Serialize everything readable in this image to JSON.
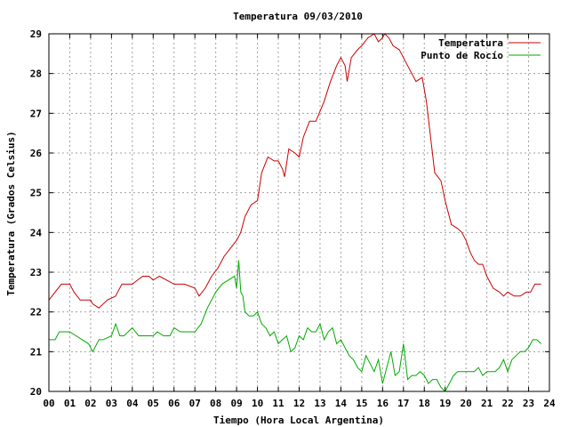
{
  "chart_data": {
    "type": "line",
    "title": "Temperatura 09/03/2010",
    "xlabel": "Tiempo (Hora Local Argentina)",
    "ylabel": "Temperatura (Grados Celsius)",
    "xlim": [
      0,
      24
    ],
    "ylim": [
      20,
      29
    ],
    "x_tick_labels": [
      "00",
      "01",
      "02",
      "03",
      "04",
      "05",
      "06",
      "07",
      "08",
      "09",
      "10",
      "11",
      "12",
      "13",
      "14",
      "15",
      "16",
      "17",
      "18",
      "19",
      "20",
      "21",
      "22",
      "23",
      "24"
    ],
    "y_tick_labels": [
      "20",
      "21",
      "22",
      "23",
      "24",
      "25",
      "26",
      "27",
      "28",
      "29"
    ],
    "grid": true,
    "legend_position": "top-right",
    "series": [
      {
        "name": "Temperatura",
        "color": "#cc0000",
        "x": [
          0,
          0.3,
          0.6,
          1.0,
          1.2,
          1.5,
          2.0,
          2.1,
          2.4,
          2.8,
          3.2,
          3.5,
          4.0,
          4.5,
          4.8,
          5.0,
          5.3,
          6.0,
          6.5,
          7.0,
          7.2,
          7.5,
          7.8,
          8.1,
          8.4,
          8.7,
          9.0,
          9.2,
          9.4,
          9.7,
          10.0,
          10.2,
          10.5,
          10.8,
          11.0,
          11.2,
          11.3,
          11.5,
          11.8,
          12.0,
          12.2,
          12.5,
          12.8,
          13.2,
          13.5,
          13.8,
          14.0,
          14.2,
          14.3,
          14.5,
          14.8,
          15.0,
          15.3,
          15.6,
          15.8,
          16.0,
          16.1,
          16.3,
          16.5,
          16.8,
          17.0,
          17.3,
          17.6,
          17.9,
          18.1,
          18.3,
          18.5,
          18.8,
          19.0,
          19.3,
          19.6,
          19.8,
          20.0,
          20.2,
          20.4,
          20.6,
          20.8,
          21.0,
          21.3,
          21.6,
          21.8,
          22.0,
          22.3,
          22.6,
          22.9,
          23.1,
          23.3,
          23.6
        ],
        "y": [
          22.3,
          22.5,
          22.7,
          22.7,
          22.5,
          22.3,
          22.3,
          22.2,
          22.1,
          22.3,
          22.4,
          22.7,
          22.7,
          22.9,
          22.9,
          22.8,
          22.9,
          22.7,
          22.7,
          22.6,
          22.4,
          22.6,
          22.9,
          23.1,
          23.4,
          23.6,
          23.8,
          24.0,
          24.4,
          24.7,
          24.8,
          25.5,
          25.9,
          25.8,
          25.8,
          25.6,
          25.4,
          26.1,
          26.0,
          25.9,
          26.4,
          26.8,
          26.8,
          27.3,
          27.8,
          28.2,
          28.4,
          28.2,
          27.8,
          28.4,
          28.6,
          28.7,
          28.9,
          29.0,
          28.8,
          28.9,
          29.0,
          28.9,
          28.7,
          28.6,
          28.4,
          28.1,
          27.8,
          27.9,
          27.3,
          26.4,
          25.5,
          25.3,
          24.8,
          24.2,
          24.1,
          24.0,
          23.8,
          23.5,
          23.3,
          23.2,
          23.2,
          22.9,
          22.6,
          22.5,
          22.4,
          22.5,
          22.4,
          22.4,
          22.5,
          22.5,
          22.7,
          22.7
        ]
      },
      {
        "name": "Punto de Rocío",
        "color": "#00aa00",
        "x": [
          0,
          0.3,
          0.5,
          0.8,
          1.0,
          1.3,
          1.6,
          1.9,
          2.1,
          2.4,
          2.6,
          3.0,
          3.2,
          3.4,
          3.6,
          4.0,
          4.3,
          4.6,
          5.0,
          5.2,
          5.5,
          5.8,
          6.0,
          6.3,
          6.6,
          7.0,
          7.3,
          7.6,
          7.8,
          8.0,
          8.3,
          8.6,
          8.9,
          9.0,
          9.1,
          9.2,
          9.3,
          9.4,
          9.6,
          9.8,
          10.0,
          10.2,
          10.4,
          10.6,
          10.8,
          11.0,
          11.2,
          11.4,
          11.6,
          11.8,
          12.0,
          12.2,
          12.4,
          12.6,
          12.8,
          13.0,
          13.2,
          13.4,
          13.6,
          13.8,
          14.0,
          14.2,
          14.4,
          14.6,
          14.8,
          15.0,
          15.2,
          15.4,
          15.6,
          15.8,
          16.0,
          16.2,
          16.4,
          16.6,
          16.8,
          17.0,
          17.2,
          17.4,
          17.6,
          17.8,
          18.0,
          18.2,
          18.4,
          18.6,
          18.8,
          19.0,
          19.2,
          19.4,
          19.6,
          19.8,
          20.0,
          20.2,
          20.4,
          20.6,
          20.8,
          21.0,
          21.2,
          21.4,
          21.6,
          21.8,
          22.0,
          22.2,
          22.4,
          22.6,
          22.8,
          23.0,
          23.2,
          23.4,
          23.6
        ],
        "y": [
          21.3,
          21.3,
          21.5,
          21.5,
          21.5,
          21.4,
          21.3,
          21.2,
          21.0,
          21.3,
          21.3,
          21.4,
          21.7,
          21.4,
          21.4,
          21.6,
          21.4,
          21.4,
          21.4,
          21.5,
          21.4,
          21.4,
          21.6,
          21.5,
          21.5,
          21.5,
          21.7,
          22.1,
          22.3,
          22.5,
          22.7,
          22.8,
          22.9,
          22.6,
          23.3,
          22.5,
          22.4,
          22.0,
          21.9,
          21.9,
          22.0,
          21.7,
          21.6,
          21.4,
          21.5,
          21.2,
          21.3,
          21.4,
          21.0,
          21.1,
          21.4,
          21.3,
          21.6,
          21.5,
          21.5,
          21.7,
          21.3,
          21.5,
          21.6,
          21.2,
          21.3,
          21.1,
          20.9,
          20.8,
          20.6,
          20.5,
          20.9,
          20.7,
          20.5,
          20.8,
          20.2,
          20.6,
          21.0,
          20.4,
          20.5,
          21.2,
          20.3,
          20.4,
          20.4,
          20.5,
          20.4,
          20.2,
          20.3,
          20.3,
          20.1,
          20.0,
          20.2,
          20.4,
          20.5,
          20.5,
          20.5,
          20.5,
          20.5,
          20.6,
          20.4,
          20.5,
          20.5,
          20.5,
          20.6,
          20.8,
          20.5,
          20.8,
          20.9,
          21.0,
          21.0,
          21.1,
          21.3,
          21.3,
          21.2
        ]
      }
    ]
  }
}
